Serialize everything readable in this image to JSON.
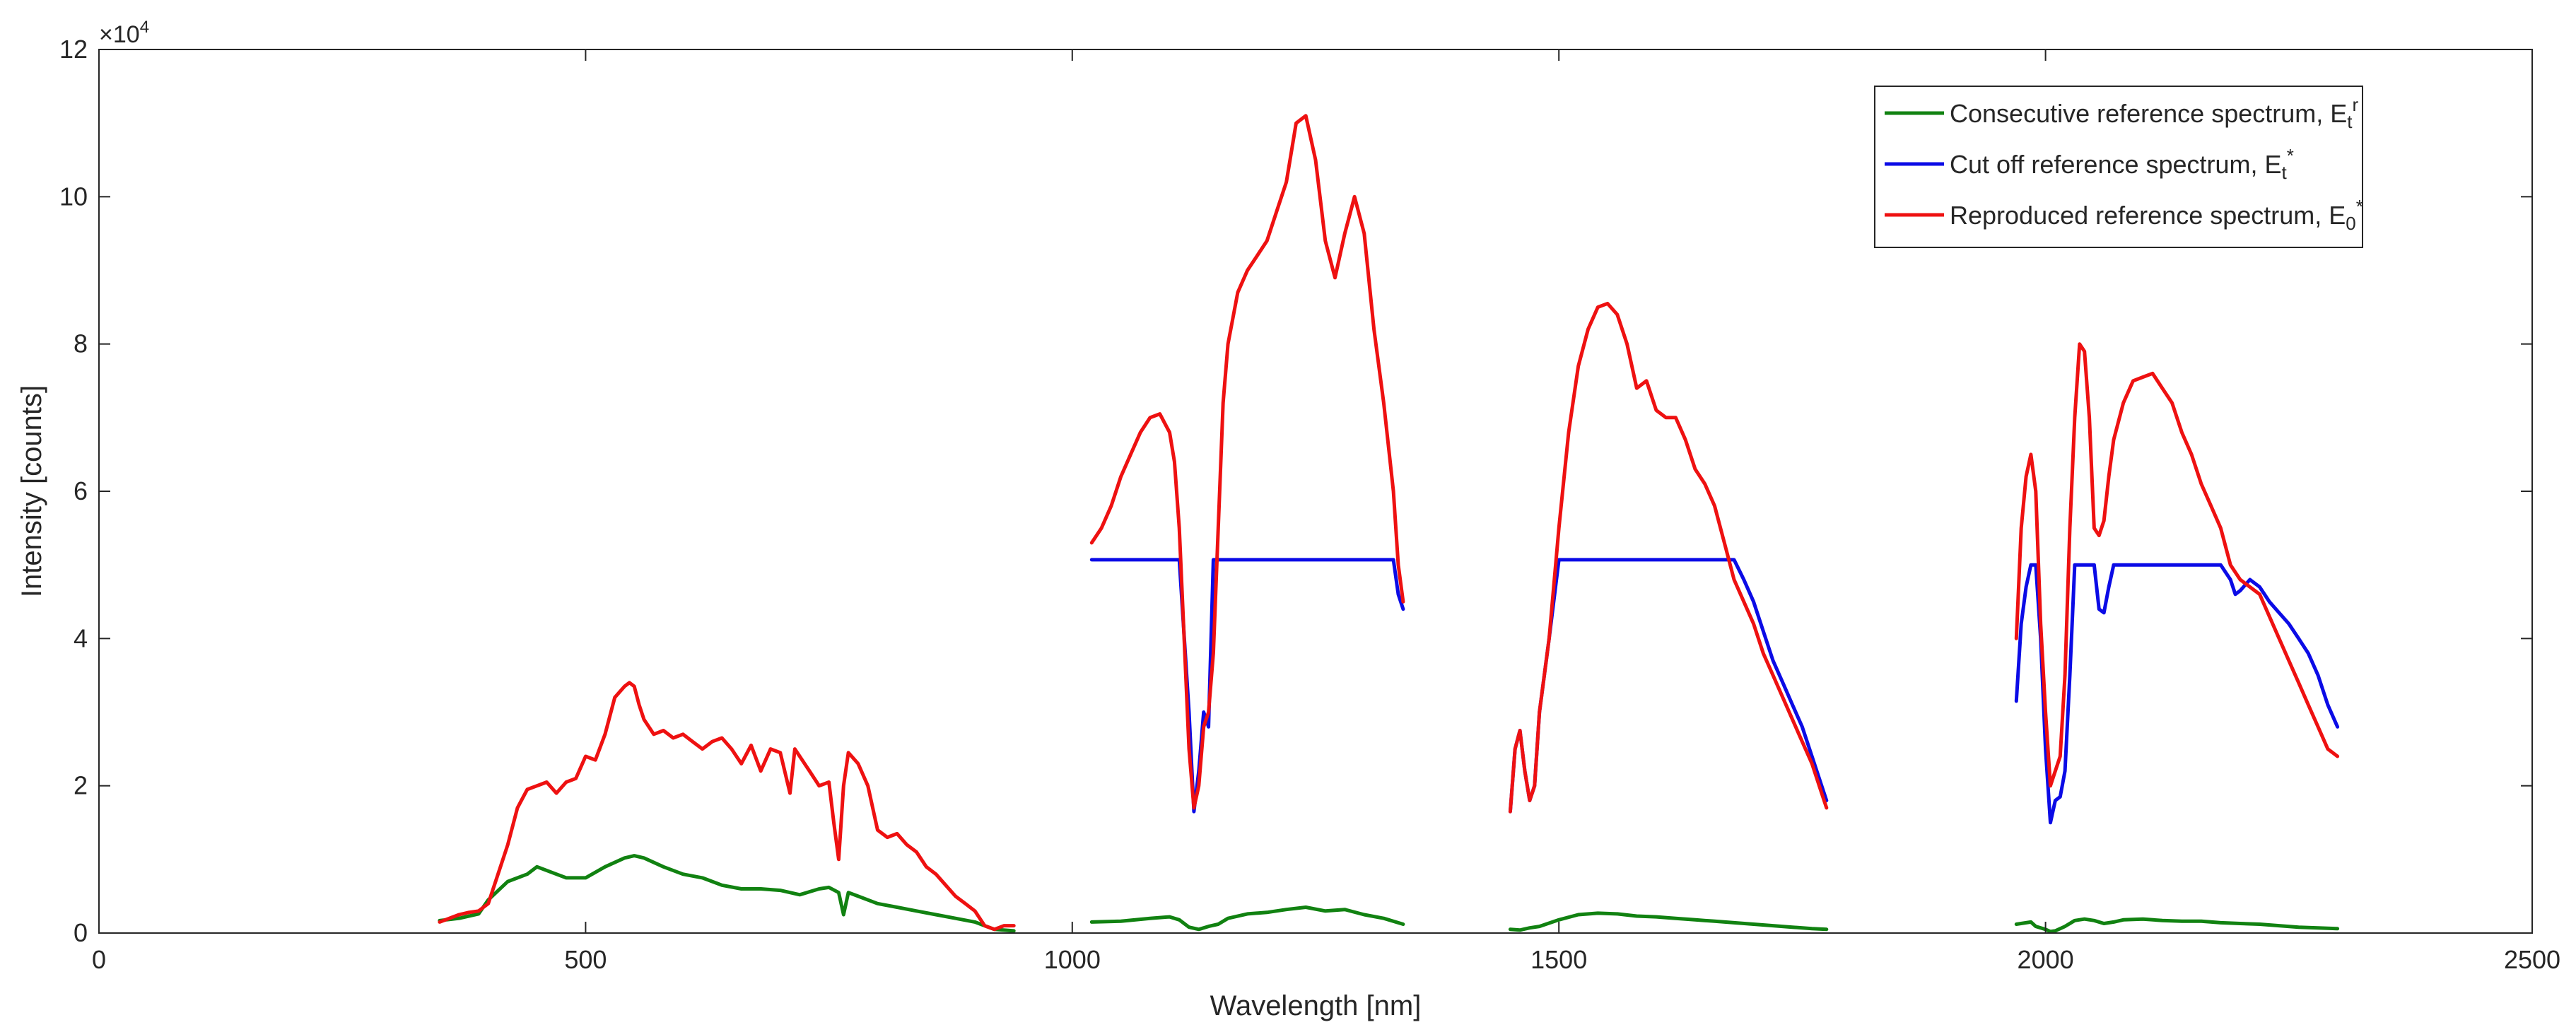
{
  "chart_data": {
    "type": "line",
    "title": "",
    "xlabel": "Wavelength [nm]",
    "ylabel": "Intensity [counts]",
    "xlim": [
      0,
      2500
    ],
    "ylim": [
      0,
      120000
    ],
    "y_exponent_label": "×10",
    "y_exponent_power": "4",
    "xticks": [
      0,
      500,
      1000,
      1500,
      2000,
      2500
    ],
    "xtick_labels": [
      "0",
      "500",
      "1000",
      "1500",
      "2000",
      "2500"
    ],
    "yticks": [
      0,
      20000,
      40000,
      60000,
      80000,
      100000,
      120000
    ],
    "ytick_labels": [
      "0",
      "2",
      "4",
      "6",
      "8",
      "10",
      "12"
    ],
    "grid": false,
    "legend_position": "top-right",
    "series": [
      {
        "name": "Consecutive reference spectrum, E_t^r",
        "legend_text": "Consecutive reference spectrum, E",
        "legend_sub": "t",
        "legend_sup": "r",
        "color": "#118211",
        "segments": [
          {
            "x": [
              350,
              370,
              390,
              400,
              420,
              440,
              450,
              470,
              480,
              500,
              520,
              540,
              550,
              560,
              580,
              600,
              620,
              640,
              660,
              680,
              700,
              720,
              740,
              750,
              760,
              765,
              770,
              780,
              800,
              820,
              840,
              860,
              880,
              900,
              920,
              940
            ],
            "y": [
              1700,
              2000,
              2600,
              4500,
              7000,
              8000,
              9000,
              8000,
              7500,
              7500,
              9000,
              10200,
              10500,
              10200,
              9000,
              8000,
              7500,
              6500,
              6000,
              6000,
              5800,
              5200,
              6000,
              6200,
              5500,
              2500,
              5500,
              5000,
              4000,
              3500,
              3000,
              2500,
              2000,
              1500,
              500,
              300
            ]
          },
          {
            "x": [
              1020,
              1050,
              1080,
              1100,
              1110,
              1120,
              1130,
              1140,
              1150,
              1160,
              1180,
              1200,
              1220,
              1240,
              1260,
              1280,
              1300,
              1320,
              1340
            ],
            "y": [
              1500,
              1600,
              2000,
              2200,
              1800,
              800,
              500,
              900,
              1200,
              2000,
              2600,
              2800,
              3200,
              3500,
              3000,
              3200,
              2500,
              2000,
              1200
            ]
          },
          {
            "x": [
              1450,
              1460,
              1470,
              1480,
              1500,
              1520,
              1540,
              1560,
              1580,
              1600,
              1620,
              1640,
              1660,
              1680,
              1700,
              1720,
              1740,
              1760,
              1775
            ],
            "y": [
              500,
              400,
              700,
              900,
              1800,
              2500,
              2700,
              2600,
              2300,
              2200,
              2000,
              1800,
              1600,
              1400,
              1200,
              1000,
              800,
              600,
              500
            ]
          },
          {
            "x": [
              1970,
              1985,
              1990,
              2000,
              2005,
              2010,
              2020,
              2030,
              2040,
              2050,
              2060,
              2070,
              2080,
              2100,
              2120,
              2140,
              2160,
              2180,
              2200,
              2220,
              2240,
              2260,
              2280,
              2300
            ],
            "y": [
              1200,
              1500,
              900,
              500,
              200,
              300,
              900,
              1700,
              1900,
              1700,
              1300,
              1500,
              1800,
              1900,
              1700,
              1600,
              1600,
              1400,
              1300,
              1200,
              1000,
              800,
              700,
              600
            ]
          }
        ]
      },
      {
        "name": "Cut off reference spectrum, E_t*",
        "legend_text": "Cut off reference spectrum, E",
        "legend_sub": "t",
        "legend_sup": "*",
        "color": "#0b0be6",
        "segments": [
          {
            "x": [
              1020,
              1050,
              1080,
              1100,
              1110,
              1120,
              1125,
              1130,
              1135,
              1140,
              1145,
              1150,
              1155,
              1160,
              1300,
              1320,
              1330,
              1335,
              1340
            ],
            "y": [
              50700,
              50700,
              50700,
              50700,
              50700,
              30000,
              16500,
              22000,
              30000,
              28000,
              50700,
              50700,
              50700,
              50700,
              50700,
              50700,
              50700,
              46000,
              44000
            ]
          },
          {
            "x": [
              1450,
              1455,
              1460,
              1465,
              1470,
              1475,
              1480,
              1490,
              1500,
              1510,
              1520,
              1550,
              1650,
              1680,
              1690,
              1700,
              1710,
              1720,
              1730,
              1740,
              1750,
              1760,
              1770,
              1775
            ],
            "y": [
              16500,
              25000,
              27500,
              22000,
              18000,
              20000,
              30000,
              40000,
              50700,
              50700,
              50700,
              50700,
              50700,
              50700,
              48000,
              45000,
              41000,
              37000,
              34000,
              31000,
              28000,
              24000,
              20000,
              18000
            ]
          },
          {
            "x": [
              1970,
              1975,
              1980,
              1985,
              1990,
              1995,
              2000,
              2005,
              2010,
              2015,
              2020,
              2025,
              2030,
              2035,
              2040,
              2045,
              2050,
              2055,
              2060,
              2065,
              2070,
              2080,
              2100,
              2120,
              2150,
              2180,
              2190,
              2195,
              2200,
              2210,
              2220,
              2230,
              2240,
              2250,
              2260,
              2270,
              2280,
              2290,
              2300
            ],
            "y": [
              31500,
              42000,
              47000,
              50000,
              50000,
              40000,
              25000,
              15000,
              18000,
              18500,
              22000,
              35000,
              50000,
              50000,
              50000,
              50000,
              50000,
              44000,
              43500,
              47000,
              50000,
              50000,
              50000,
              50000,
              50000,
              50000,
              48000,
              46000,
              46500,
              48000,
              47000,
              45000,
              43500,
              42000,
              40000,
              38000,
              35000,
              31000,
              28000
            ]
          }
        ]
      },
      {
        "name": "Reproduced reference spectrum, E_0*",
        "legend_text": "Reproduced reference spectrum, E",
        "legend_sub": "0",
        "legend_sup": "*",
        "color": "#ee1111",
        "segments": [
          {
            "x": [
              350,
              360,
              370,
              380,
              390,
              400,
              410,
              420,
              430,
              440,
              450,
              460,
              470,
              480,
              490,
              500,
              510,
              520,
              530,
              540,
              545,
              550,
              555,
              560,
              570,
              580,
              590,
              600,
              610,
              620,
              630,
              640,
              650,
              660,
              670,
              680,
              690,
              700,
              710,
              715,
              720,
              730,
              740,
              750,
              755,
              760,
              765,
              770,
              780,
              790,
              800,
              810,
              820,
              830,
              840,
              850,
              860,
              870,
              880,
              890,
              900,
              910,
              920,
              930,
              940
            ],
            "y": [
              1500,
              2000,
              2500,
              2800,
              3000,
              4000,
              8000,
              12000,
              17000,
              19500,
              20000,
              20500,
              19000,
              20500,
              21000,
              24000,
              23500,
              27000,
              32000,
              33500,
              34000,
              33500,
              31000,
              29000,
              27000,
              27500,
              26500,
              27000,
              26000,
              25000,
              26000,
              26500,
              25000,
              23000,
              25500,
              22000,
              25000,
              24500,
              19000,
              25000,
              24000,
              22000,
              20000,
              20500,
              15000,
              10000,
              20000,
              24500,
              23000,
              20000,
              14000,
              13000,
              13500,
              12000,
              11000,
              9000,
              8000,
              6500,
              5000,
              4000,
              3000,
              1000,
              500,
              1000,
              1000
            ]
          },
          {
            "x": [
              1020,
              1030,
              1040,
              1050,
              1060,
              1070,
              1080,
              1090,
              1100,
              1105,
              1110,
              1115,
              1120,
              1125,
              1130,
              1135,
              1140,
              1145,
              1150,
              1155,
              1160,
              1170,
              1180,
              1190,
              1200,
              1210,
              1220,
              1230,
              1240,
              1250,
              1260,
              1270,
              1280,
              1290,
              1300,
              1310,
              1320,
              1330,
              1335,
              1340
            ],
            "y": [
              53000,
              55000,
              58000,
              62000,
              65000,
              68000,
              70000,
              70500,
              68000,
              64000,
              55000,
              40000,
              25000,
              17000,
              20000,
              28000,
              30000,
              38000,
              55000,
              72000,
              80000,
              87000,
              90000,
              92000,
              94000,
              98000,
              102000,
              110000,
              111000,
              105000,
              94000,
              89000,
              95000,
              100000,
              95000,
              82000,
              72000,
              60000,
              50000,
              45000
            ]
          },
          {
            "x": [
              1450,
              1455,
              1460,
              1465,
              1470,
              1475,
              1480,
              1490,
              1500,
              1510,
              1520,
              1530,
              1540,
              1550,
              1560,
              1570,
              1580,
              1590,
              1600,
              1610,
              1620,
              1630,
              1640,
              1650,
              1660,
              1670,
              1680,
              1690,
              1700,
              1710,
              1720,
              1730,
              1740,
              1750,
              1760,
              1770,
              1775
            ],
            "y": [
              16500,
              25000,
              27500,
              22000,
              18000,
              20000,
              30000,
              40000,
              55000,
              68000,
              77000,
              82000,
              85000,
              85500,
              84000,
              80000,
              74000,
              75000,
              71000,
              70000,
              70000,
              67000,
              63000,
              61000,
              58000,
              53000,
              48000,
              45000,
              42000,
              38000,
              35000,
              32000,
              29000,
              26000,
              23000,
              19000,
              17000
            ]
          },
          {
            "x": [
              1970,
              1975,
              1980,
              1985,
              1990,
              1995,
              2000,
              2005,
              2010,
              2015,
              2020,
              2025,
              2030,
              2035,
              2040,
              2045,
              2050,
              2055,
              2060,
              2065,
              2070,
              2080,
              2090,
              2100,
              2110,
              2120,
              2130,
              2140,
              2150,
              2160,
              2170,
              2180,
              2190,
              2200,
              2210,
              2220,
              2230,
              2240,
              2250,
              2260,
              2270,
              2280,
              2290,
              2300
            ],
            "y": [
              40000,
              55000,
              62000,
              65000,
              60000,
              42000,
              30000,
              20000,
              22000,
              24000,
              35000,
              55000,
              70000,
              80000,
              79000,
              70000,
              55000,
              54000,
              56000,
              62000,
              67000,
              72000,
              75000,
              75500,
              76000,
              74000,
              72000,
              68000,
              65000,
              61000,
              58000,
              55000,
              50000,
              48000,
              47000,
              46000,
              43000,
              40000,
              37000,
              34000,
              31000,
              28000,
              25000,
              24000
            ]
          }
        ]
      }
    ]
  }
}
